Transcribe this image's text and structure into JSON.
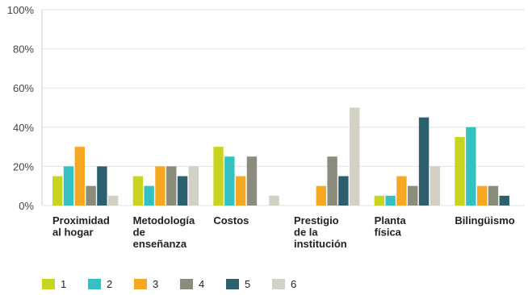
{
  "chart_data": {
    "type": "bar",
    "categories": [
      [
        "Proximidad",
        "al hogar"
      ],
      [
        "Metodología",
        "de",
        "enseñanza"
      ],
      [
        "Costos"
      ],
      [
        "Prestigio",
        "de la",
        "institución"
      ],
      [
        "Planta",
        "física"
      ],
      [
        "Bilingüismo"
      ]
    ],
    "series": [
      {
        "name": "1",
        "color": "#c8d41f",
        "values": [
          15,
          15,
          30,
          0,
          5,
          35
        ]
      },
      {
        "name": "2",
        "color": "#35c1c1",
        "values": [
          20,
          10,
          25,
          0,
          5,
          40
        ]
      },
      {
        "name": "3",
        "color": "#f7a823",
        "values": [
          30,
          20,
          15,
          10,
          15,
          10
        ]
      },
      {
        "name": "4",
        "color": "#8c8c7c",
        "values": [
          10,
          20,
          25,
          25,
          10,
          10
        ]
      },
      {
        "name": "5",
        "color": "#2e5f6e",
        "values": [
          20,
          15,
          0,
          15,
          45,
          5
        ]
      },
      {
        "name": "6",
        "color": "#d2d1c3",
        "values": [
          5,
          20,
          5,
          50,
          20,
          0
        ]
      }
    ],
    "yticks": [
      "0%",
      "20%",
      "40%",
      "60%",
      "80%",
      "100%"
    ],
    "ylim": [
      0,
      100
    ],
    "grid": true,
    "legend": "bottom-left",
    "title": "",
    "xlabel": "",
    "ylabel": ""
  }
}
